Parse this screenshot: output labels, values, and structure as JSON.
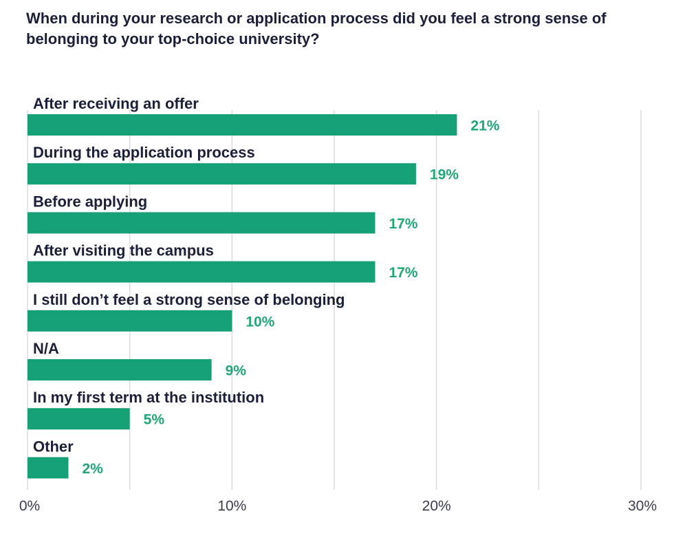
{
  "chart_data": {
    "type": "bar",
    "orientation": "horizontal",
    "title": "When during your research or application process did you feel a strong sense of belonging to your top-choice university?",
    "categories": [
      "After receiving an offer",
      "During the application process",
      "Before applying",
      "After visiting the campus",
      "I still don’t feel a strong sense of belonging",
      "N/A",
      "In my first term at the institution",
      "Other"
    ],
    "values": [
      21,
      19,
      17,
      17,
      10,
      9,
      5,
      2
    ],
    "value_labels": [
      "21%",
      "19%",
      "17%",
      "17%",
      "10%",
      "9%",
      "5%",
      "2%"
    ],
    "xlim": [
      0,
      30
    ],
    "xticks": [
      0,
      10,
      20,
      30
    ],
    "xtick_labels": [
      "0%",
      "10%",
      "20%",
      "30%"
    ],
    "gridlines": [
      0,
      5,
      10,
      15,
      20,
      25,
      30
    ],
    "grid": true,
    "xlabel": "",
    "ylabel": "",
    "bar_color": "#16a075",
    "label_color": "#1fa874"
  }
}
